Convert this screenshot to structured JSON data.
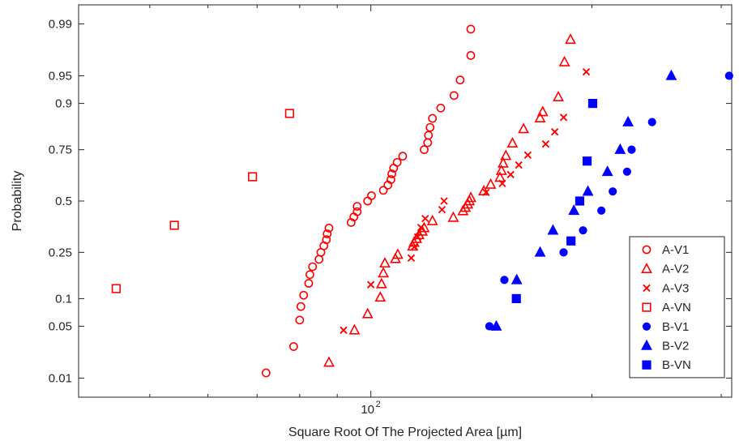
{
  "chart_data": {
    "type": "scatter",
    "xlabel": "Square Root Of The Projected Area [µm]",
    "ylabel": "Probability",
    "x_scale": "log",
    "xlim": [
      40,
      310
    ],
    "x_ticks": [
      100
    ],
    "x_tick_labels": [
      {
        "base": "10",
        "exp": "2"
      }
    ],
    "y_scale": "normal-probability",
    "ylim": [
      0.005,
      0.995
    ],
    "y_ticks": [
      0.01,
      0.05,
      0.1,
      0.25,
      0.5,
      0.75,
      0.9,
      0.95,
      0.99
    ],
    "y_tick_labels": [
      "0.01",
      "0.05",
      "0.1",
      "0.25",
      "0.5",
      "0.75",
      "0.9",
      "0.95",
      "0.99"
    ],
    "grid": false,
    "legend_position": "bottom-right",
    "colors": {
      "A": "#ff0000",
      "B": "#0000ff"
    },
    "series": [
      {
        "name": "A-V1",
        "marker": "circle-open",
        "color": "#ff0000",
        "points": [
          [
            72,
            0.012
          ],
          [
            78.5,
            0.028
          ],
          [
            80,
            0.059
          ],
          [
            80.3,
            0.083
          ],
          [
            81,
            0.108
          ],
          [
            82.3,
            0.14
          ],
          [
            82.6,
            0.167
          ],
          [
            83.3,
            0.194
          ],
          [
            85,
            0.222
          ],
          [
            85.5,
            0.25
          ],
          [
            86.3,
            0.278
          ],
          [
            87,
            0.306
          ],
          [
            87.2,
            0.333
          ],
          [
            87.7,
            0.361
          ],
          [
            94,
            0.389
          ],
          [
            94.8,
            0.417
          ],
          [
            95.8,
            0.444
          ],
          [
            95.8,
            0.472
          ],
          [
            99,
            0.5
          ],
          [
            100.2,
            0.528
          ],
          [
            104,
            0.556
          ],
          [
            105.5,
            0.583
          ],
          [
            106.5,
            0.611
          ],
          [
            106.8,
            0.639
          ],
          [
            107.4,
            0.667
          ],
          [
            108.6,
            0.694
          ],
          [
            110.5,
            0.722
          ],
          [
            118.2,
            0.75
          ],
          [
            119.5,
            0.778
          ],
          [
            119.8,
            0.806
          ],
          [
            120.4,
            0.833
          ],
          [
            121.3,
            0.861
          ],
          [
            124.5,
            0.889
          ],
          [
            129.8,
            0.917
          ],
          [
            132.3,
            0.944
          ],
          [
            136.8,
            0.972
          ],
          [
            136.8,
            0.988
          ]
        ]
      },
      {
        "name": "A-V2",
        "marker": "triangle-open",
        "color": "#ff0000",
        "points": [
          [
            87.7,
            0.017
          ],
          [
            95,
            0.045
          ],
          [
            99,
            0.069
          ],
          [
            103,
            0.103
          ],
          [
            103.4,
            0.138
          ],
          [
            104,
            0.172
          ],
          [
            104.5,
            0.207
          ],
          [
            108,
            0.224
          ],
          [
            108.8,
            0.241
          ],
          [
            114,
            0.276
          ],
          [
            114.5,
            0.293
          ],
          [
            115.4,
            0.31
          ],
          [
            116.3,
            0.328
          ],
          [
            117.5,
            0.345
          ],
          [
            118.2,
            0.362
          ],
          [
            121.3,
            0.397
          ],
          [
            129.5,
            0.414
          ],
          [
            133.5,
            0.448
          ],
          [
            134.5,
            0.466
          ],
          [
            135.5,
            0.483
          ],
          [
            136.2,
            0.5
          ],
          [
            136.8,
            0.517
          ],
          [
            142.5,
            0.552
          ],
          [
            145.6,
            0.586
          ],
          [
            149.9,
            0.621
          ],
          [
            150.6,
            0.655
          ],
          [
            151.4,
            0.69
          ],
          [
            152.7,
            0.724
          ],
          [
            155.9,
            0.776
          ],
          [
            161.4,
            0.828
          ],
          [
            170,
            0.862
          ],
          [
            171.4,
            0.879
          ],
          [
            180,
            0.914
          ],
          [
            183.5,
            0.966
          ],
          [
            187,
            0.983
          ]
        ]
      },
      {
        "name": "A-V3",
        "marker": "x",
        "color": "#ff0000",
        "points": [
          [
            91.8,
            0.045
          ],
          [
            100,
            0.136
          ],
          [
            113.5,
            0.227
          ],
          [
            114.6,
            0.273
          ],
          [
            115.8,
            0.318
          ],
          [
            117,
            0.364
          ],
          [
            118.6,
            0.409
          ],
          [
            125,
            0.455
          ],
          [
            125.8,
            0.5
          ],
          [
            143.5,
            0.545
          ],
          [
            151,
            0.591
          ],
          [
            155,
            0.636
          ],
          [
            159,
            0.682
          ],
          [
            163.6,
            0.727
          ],
          [
            173,
            0.773
          ],
          [
            178,
            0.818
          ],
          [
            183,
            0.864
          ],
          [
            196.5,
            0.955
          ]
        ]
      },
      {
        "name": "A-VN",
        "marker": "square-open",
        "color": "#ff0000",
        "points": [
          [
            45,
            0.125
          ],
          [
            54,
            0.375
          ],
          [
            69,
            0.625
          ],
          [
            77.5,
            0.875
          ]
        ]
      },
      {
        "name": "B-V1",
        "marker": "circle-filled",
        "color": "#0000ff",
        "points": [
          [
            145,
            0.05
          ],
          [
            152,
            0.15
          ],
          [
            183,
            0.25
          ],
          [
            194.5,
            0.35
          ],
          [
            206,
            0.45
          ],
          [
            213.5,
            0.55
          ],
          [
            223.3,
            0.65
          ],
          [
            226.5,
            0.75
          ],
          [
            241.5,
            0.85
          ],
          [
            307.5,
            0.95
          ]
        ]
      },
      {
        "name": "B-V2",
        "marker": "triangle-filled",
        "color": "#0000ff",
        "points": [
          [
            148.2,
            0.05
          ],
          [
            158,
            0.15
          ],
          [
            170,
            0.25
          ],
          [
            177,
            0.35
          ],
          [
            189,
            0.45
          ],
          [
            197.5,
            0.55
          ],
          [
            210,
            0.65
          ],
          [
            218.5,
            0.75
          ],
          [
            224,
            0.85
          ],
          [
            256.5,
            0.95
          ]
        ]
      },
      {
        "name": "B-VN",
        "marker": "square-filled",
        "color": "#0000ff",
        "points": [
          [
            157.8,
            0.1
          ],
          [
            187.3,
            0.3
          ],
          [
            192.5,
            0.5
          ],
          [
            197,
            0.7
          ],
          [
            200.5,
            0.9
          ]
        ]
      }
    ]
  }
}
